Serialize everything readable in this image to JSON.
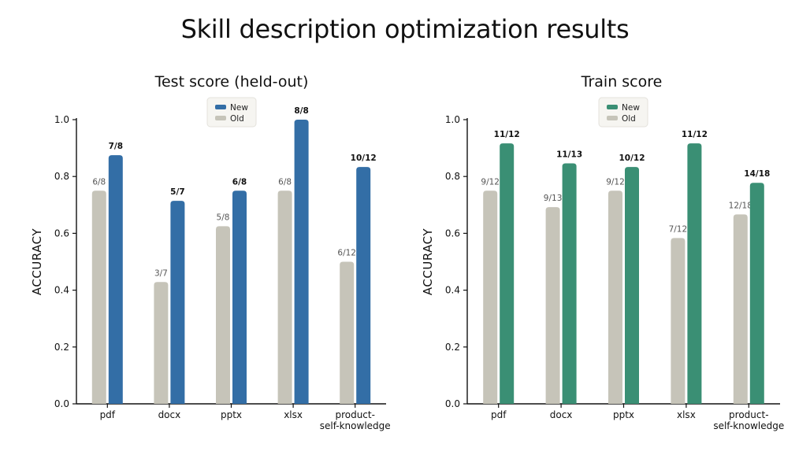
{
  "title": "Skill description optimization results",
  "colors": {
    "old": "#c6c4b9",
    "new_test": "#336ea6",
    "new_train": "#3a8f74",
    "legend_bg": "#f6f5f1",
    "legend_border": "#e4e2dc"
  },
  "chart_data": [
    {
      "type": "bar",
      "title": "Test score (held-out)",
      "xlabel": "",
      "ylabel": "ACCURACY",
      "ylim": [
        0,
        1.0
      ],
      "yticks": [
        "0.0",
        "0.2",
        "0.4",
        "0.6",
        "0.8",
        "1.0"
      ],
      "legend": {
        "position": "top-center",
        "entries": [
          "New",
          "Old"
        ]
      },
      "grid": false,
      "categories": [
        [
          "pdf"
        ],
        [
          "docx"
        ],
        [
          "pptx"
        ],
        [
          "xlsx"
        ],
        [
          "product-",
          "self-knowledge"
        ]
      ],
      "series": [
        {
          "name": "Old",
          "values": [
            0.75,
            0.4286,
            0.625,
            0.75,
            0.5
          ],
          "labels": [
            "6/8",
            "3/7",
            "5/8",
            "6/8",
            "6/12"
          ]
        },
        {
          "name": "New",
          "values": [
            0.875,
            0.7143,
            0.75,
            1.0,
            0.8333
          ],
          "labels": [
            "7/8",
            "5/7",
            "6/8",
            "8/8",
            "10/12"
          ]
        }
      ]
    },
    {
      "type": "bar",
      "title": "Train score",
      "xlabel": "",
      "ylabel": "ACCURACY",
      "ylim": [
        0,
        1.0
      ],
      "yticks": [
        "0.0",
        "0.2",
        "0.4",
        "0.6",
        "0.8",
        "1.0"
      ],
      "legend": {
        "position": "top-center",
        "entries": [
          "New",
          "Old"
        ]
      },
      "grid": false,
      "categories": [
        [
          "pdf"
        ],
        [
          "docx"
        ],
        [
          "pptx"
        ],
        [
          "xlsx"
        ],
        [
          "product-",
          "self-knowledge"
        ]
      ],
      "series": [
        {
          "name": "Old",
          "values": [
            0.75,
            0.6923,
            0.75,
            0.5833,
            0.6667
          ],
          "labels": [
            "9/12",
            "9/13",
            "9/12",
            "7/12",
            "12/18"
          ]
        },
        {
          "name": "New",
          "values": [
            0.9167,
            0.8462,
            0.8333,
            0.9167,
            0.7778
          ],
          "labels": [
            "11/12",
            "11/13",
            "10/12",
            "11/12",
            "14/18"
          ]
        }
      ]
    }
  ]
}
